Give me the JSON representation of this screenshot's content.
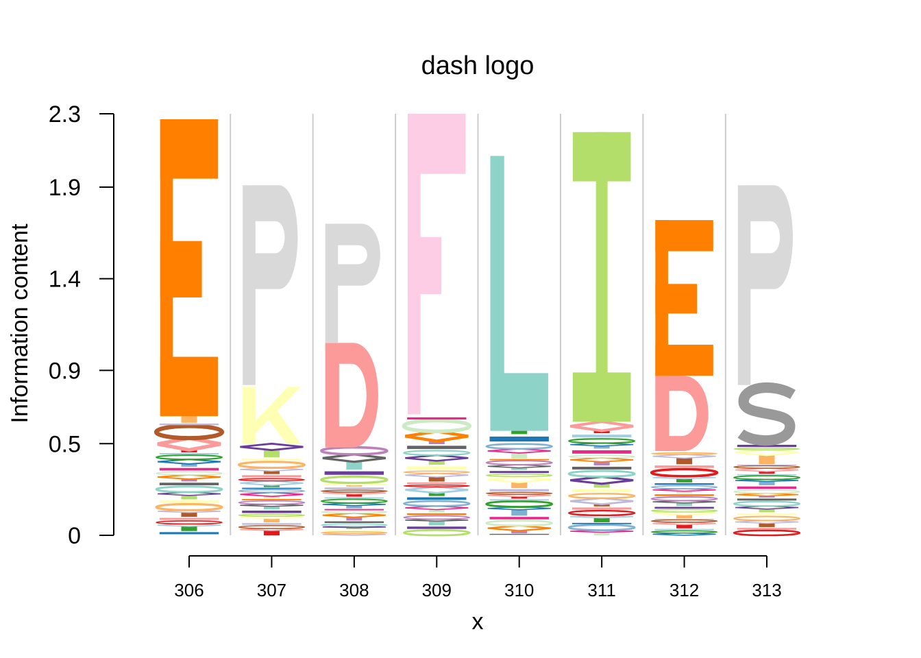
{
  "chart_data": {
    "type": "sequence-logo",
    "title": "dash logo",
    "xlabel": "x",
    "ylabel": "Information content",
    "ylim": [
      0,
      2.3
    ],
    "yticks": [
      {
        "value": 0,
        "label": "0"
      },
      {
        "value": 0.5,
        "label": "0.5"
      },
      {
        "value": 0.9,
        "label": "0.9"
      },
      {
        "value": 1.4,
        "label": "1.4"
      },
      {
        "value": 1.9,
        "label": "1.9"
      },
      {
        "value": 2.3,
        "label": "2.3"
      }
    ],
    "positions": [
      "306",
      "307",
      "308",
      "309",
      "310",
      "311",
      "312",
      "313"
    ],
    "colors": {
      "E": "#FF7F00",
      "P": "#D9D9D9",
      "K": "#FFFFB3",
      "D": "#FB9A99",
      "F": "#FCCDE5",
      "L": "#8DD3C7",
      "I": "#B3DE69",
      "S": "#999999"
    },
    "stack_colors": [
      "#1F78B4",
      "#33A02C",
      "#A6CEE3",
      "#E31A1C",
      "#FB9A99",
      "#B15928",
      "#BEBADA",
      "#FDB462",
      "#FFFFB3",
      "#B3DE69",
      "#6A3D9A",
      "#8DD3C7",
      "#636363",
      "#BC80BD",
      "#FF7F00",
      "#CCEBC5",
      "#E7298A",
      "#80B1D3"
    ],
    "stacks": [
      {
        "position": "306",
        "minor_height": 0.65,
        "letters": [
          {
            "letter": "E",
            "bottom": 0.65,
            "top": 2.27
          }
        ]
      },
      {
        "position": "307",
        "minor_height": 0.5,
        "letters": [
          {
            "letter": "K",
            "bottom": 0.5,
            "top": 0.81
          },
          {
            "letter": "P",
            "bottom": 0.82,
            "top": 1.91
          }
        ]
      },
      {
        "position": "308",
        "minor_height": 0.48,
        "letters": [
          {
            "letter": "D",
            "bottom": 0.48,
            "top": 1.05
          },
          {
            "letter": "P",
            "bottom": 1.05,
            "top": 1.7
          }
        ]
      },
      {
        "position": "309",
        "minor_height": 0.65,
        "letters": [
          {
            "letter": "F",
            "bottom": 0.66,
            "top": 2.3
          }
        ]
      },
      {
        "position": "310",
        "minor_height": 0.57,
        "letters": [
          {
            "letter": "L",
            "bottom": 0.57,
            "top": 2.07
          }
        ]
      },
      {
        "position": "311",
        "minor_height": 0.62,
        "letters": [
          {
            "letter": "I",
            "bottom": 0.62,
            "top": 2.2
          }
        ]
      },
      {
        "position": "312",
        "minor_height": 0.45,
        "letters": [
          {
            "letter": "D",
            "bottom": 0.46,
            "top": 0.87
          },
          {
            "letter": "E",
            "bottom": 0.87,
            "top": 1.72
          }
        ]
      },
      {
        "position": "313",
        "minor_height": 0.5,
        "letters": [
          {
            "letter": "S",
            "bottom": 0.51,
            "top": 0.81
          },
          {
            "letter": "P",
            "bottom": 0.82,
            "top": 1.91
          }
        ]
      }
    ],
    "grid": "vertical separators between positions",
    "legend": "none"
  }
}
